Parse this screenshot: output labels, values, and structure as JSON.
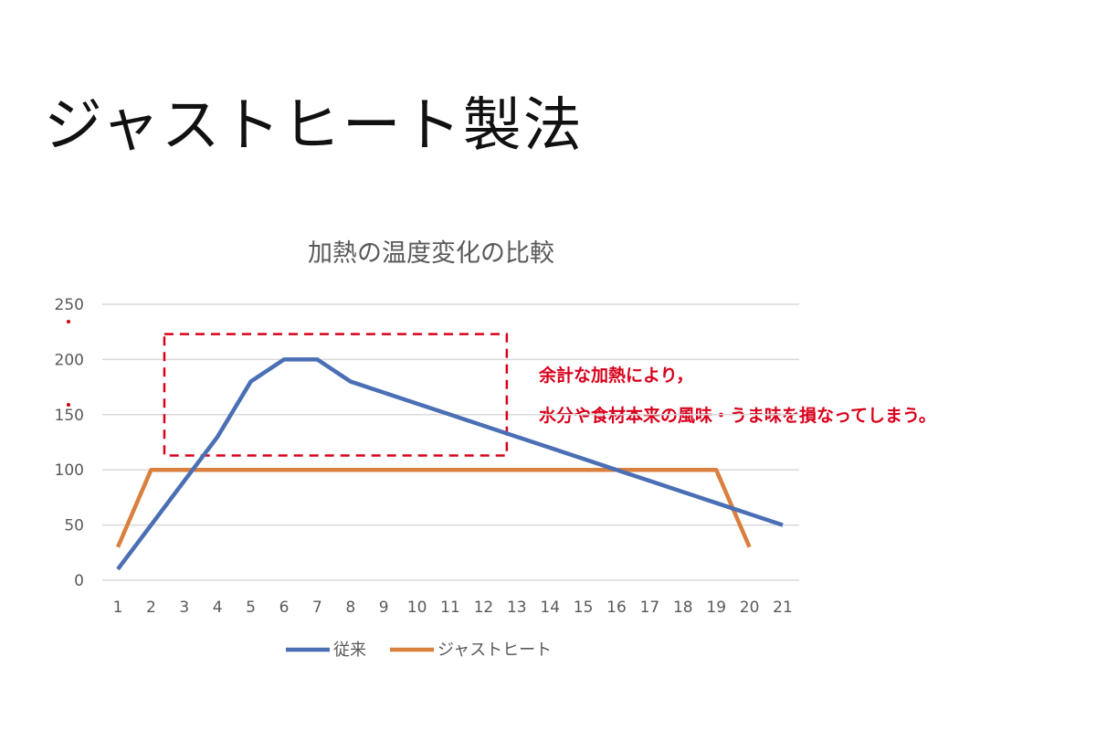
{
  "page_title": "ジャストヒート製法",
  "annotation": {
    "line1": "余計な加熱により，",
    "line2": "水分や食材本来の風味・うま味を損なってしまう。",
    "color": "#d9001b"
  },
  "chart_data": {
    "type": "line",
    "title": "加熱の温度変化の比較",
    "xlabel": "",
    "ylabel": "",
    "x": [
      1,
      2,
      3,
      4,
      5,
      6,
      7,
      8,
      9,
      10,
      11,
      12,
      13,
      14,
      15,
      16,
      17,
      18,
      19,
      20,
      21
    ],
    "ylim": [
      0,
      250
    ],
    "yticks": [
      0,
      50,
      100,
      150,
      200,
      250
    ],
    "grid": true,
    "legend": "bottom",
    "series": [
      {
        "name": "従来",
        "color": "#4a6fb5",
        "values": [
          10,
          50,
          90,
          130,
          180,
          200,
          200,
          180,
          170,
          160,
          150,
          140,
          130,
          120,
          110,
          100,
          90,
          80,
          70,
          60,
          50
        ]
      },
      {
        "name": "ジャストヒート",
        "color": "#d9803f",
        "values": [
          30,
          100,
          100,
          100,
          100,
          100,
          100,
          100,
          100,
          100,
          100,
          100,
          100,
          100,
          100,
          100,
          100,
          100,
          100,
          30,
          null
        ]
      }
    ],
    "highlight_box": {
      "x_from": 2.4,
      "x_to": 12.7,
      "y_from": 113,
      "y_to": 223,
      "color": "#d9001b"
    }
  }
}
